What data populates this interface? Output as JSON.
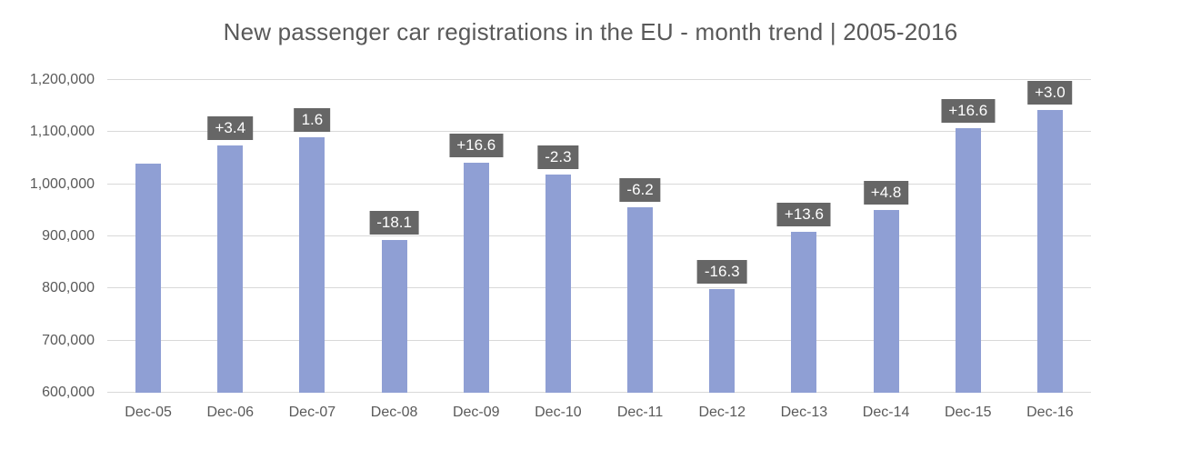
{
  "chart_data": {
    "type": "bar",
    "title": "New passenger car registrations in the EU - month trend | 2005-2016",
    "xlabel": "",
    "ylabel": "",
    "categories": [
      "Dec-05",
      "Dec-06",
      "Dec-07",
      "Dec-08",
      "Dec-09",
      "Dec-10",
      "Dec-11",
      "Dec-12",
      "Dec-13",
      "Dec-14",
      "Dec-15",
      "Dec-16"
    ],
    "values": [
      1040000,
      1075000,
      1091000,
      893000,
      1042000,
      1018000,
      955000,
      799000,
      908000,
      951000,
      1108000,
      1142000
    ],
    "bar_labels": [
      "",
      "+3.4",
      "1.6",
      "-18.1",
      "+16.6",
      "-2.3",
      "-6.2",
      "-16.3",
      "+13.6",
      "+4.8",
      "+16.6",
      "+3.0"
    ],
    "ylim": [
      600000,
      1200000
    ],
    "yticks": [
      {
        "value": 600000,
        "label": "600,000"
      },
      {
        "value": 700000,
        "label": "700,000"
      },
      {
        "value": 800000,
        "label": "800,000"
      },
      {
        "value": 900000,
        "label": "900,000"
      },
      {
        "value": 1000000,
        "label": "1,000,000"
      },
      {
        "value": 1100000,
        "label": "1,100,000"
      },
      {
        "value": 1200000,
        "label": "1,200,000"
      }
    ],
    "grid": true,
    "legend": "none",
    "colors": {
      "bar": "#8f9fd4",
      "label_bg": "#666666",
      "label_text": "#ffffff",
      "grid": "#d9d9d9",
      "text": "#595959"
    }
  }
}
